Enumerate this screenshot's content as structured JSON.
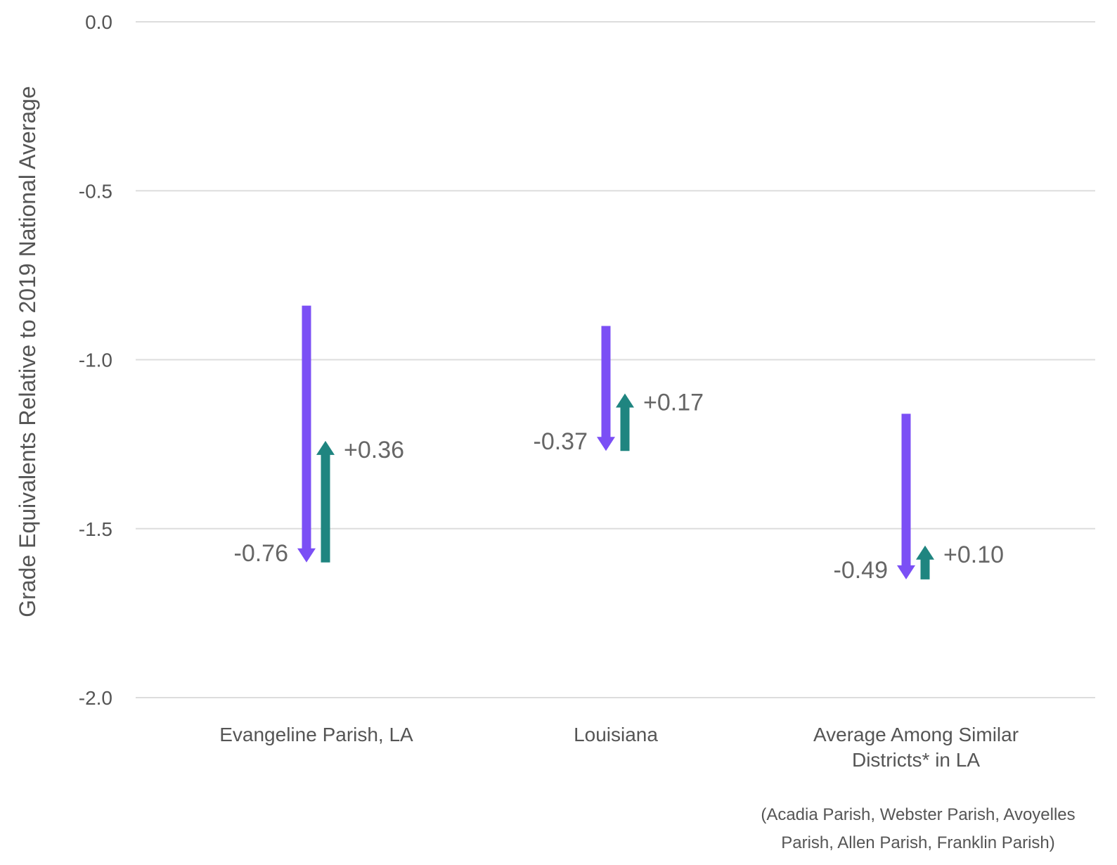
{
  "chart_data": {
    "type": "arrow-range",
    "title": "",
    "ylabel": "Grade Equivalents Relative to 2019 National Average",
    "ylim": [
      -2.0,
      0.0
    ],
    "yticks": [
      0.0,
      -0.5,
      -1.0,
      -1.5,
      -2.0
    ],
    "ytick_labels": [
      "0.0",
      "-0.5",
      "-1.0",
      "-1.5",
      "-2.0"
    ],
    "grid": true,
    "categories": [
      {
        "label_lines": [
          "Evangeline Parish, LA"
        ],
        "decline": {
          "from": -0.84,
          "to": -1.6,
          "label": "-0.76"
        },
        "recovery": {
          "from": -1.6,
          "to": -1.24,
          "label": "+0.36"
        }
      },
      {
        "label_lines": [
          "Louisiana"
        ],
        "decline": {
          "from": -0.9,
          "to": -1.27,
          "label": "-0.37"
        },
        "recovery": {
          "from": -1.27,
          "to": -1.1,
          "label": "+0.17"
        }
      },
      {
        "label_lines": [
          "Average Among Similar",
          "Districts* in LA"
        ],
        "decline": {
          "from": -1.16,
          "to": -1.65,
          "label": "-0.49"
        },
        "recovery": {
          "from": -1.65,
          "to": -1.55,
          "label": "+0.10"
        }
      }
    ],
    "footnote_lines": [
      "(Acadia Parish, Webster Parish, Avoyelles",
      "Parish, Allen Parish, Franklin Parish)"
    ],
    "colors": {
      "decline": "#7b4ff5",
      "recovery": "#1f8580"
    }
  }
}
